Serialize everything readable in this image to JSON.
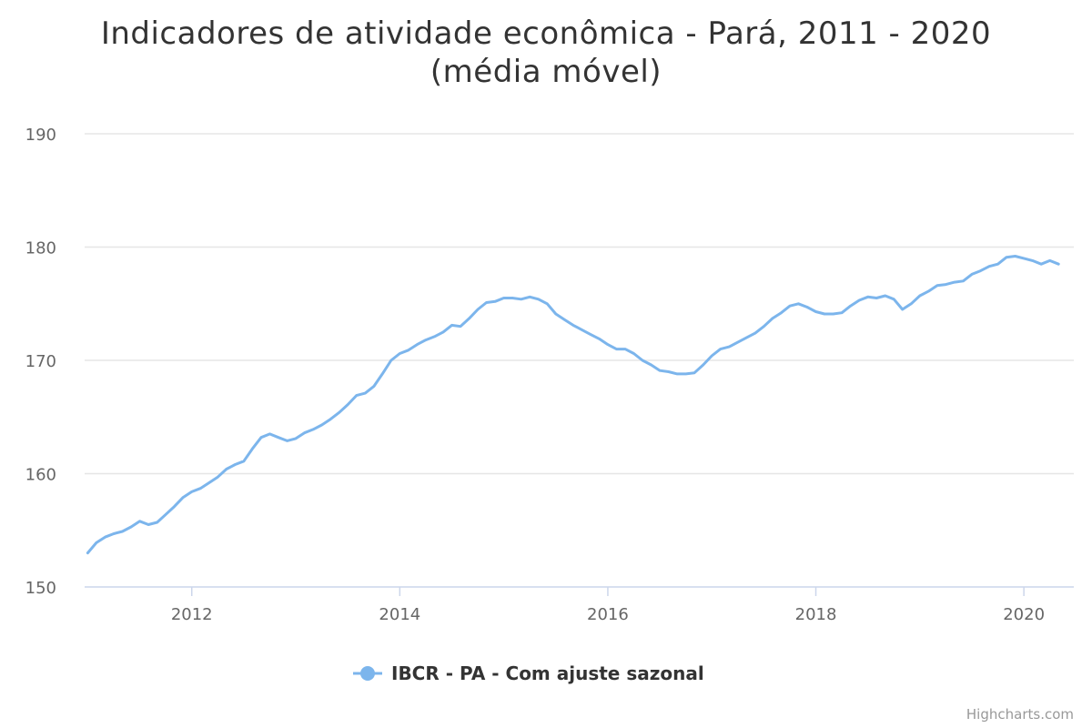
{
  "chart_data": {
    "type": "line",
    "title": "Indicadores de atividade econômica - Pará, 2011 - 2020",
    "subtitle": "(média móvel)",
    "xlabel": "",
    "ylabel": "",
    "xlim": [
      2010.97,
      2020.48
    ],
    "ylim": [
      150,
      190
    ],
    "x_ticks": [
      "2012",
      "2014",
      "2016",
      "2018",
      "2020"
    ],
    "y_ticks": [
      "150",
      "160",
      "170",
      "180",
      "190"
    ],
    "grid": "horizontal",
    "legend_position": "bottom-center",
    "series": [
      {
        "name": "IBCR - PA - Com ajuste sazonal",
        "color": "#7cb5ec",
        "x": [
          2011.0,
          2011.083,
          2011.167,
          2011.25,
          2011.333,
          2011.417,
          2011.5,
          2011.583,
          2011.667,
          2011.75,
          2011.833,
          2011.917,
          2012.0,
          2012.083,
          2012.167,
          2012.25,
          2012.333,
          2012.417,
          2012.5,
          2012.583,
          2012.667,
          2012.75,
          2012.833,
          2012.917,
          2013.0,
          2013.083,
          2013.167,
          2013.25,
          2013.333,
          2013.417,
          2013.5,
          2013.583,
          2013.667,
          2013.75,
          2013.833,
          2013.917,
          2014.0,
          2014.083,
          2014.167,
          2014.25,
          2014.333,
          2014.417,
          2014.5,
          2014.583,
          2014.667,
          2014.75,
          2014.833,
          2014.917,
          2015.0,
          2015.083,
          2015.167,
          2015.25,
          2015.333,
          2015.417,
          2015.5,
          2015.583,
          2015.667,
          2015.75,
          2015.833,
          2015.917,
          2016.0,
          2016.083,
          2016.167,
          2016.25,
          2016.333,
          2016.417,
          2016.5,
          2016.583,
          2016.667,
          2016.75,
          2016.833,
          2016.917,
          2017.0,
          2017.083,
          2017.167,
          2017.25,
          2017.333,
          2017.417,
          2017.5,
          2017.583,
          2017.667,
          2017.75,
          2017.833,
          2017.917,
          2018.0,
          2018.083,
          2018.167,
          2018.25,
          2018.333,
          2018.417,
          2018.5,
          2018.583,
          2018.667,
          2018.75,
          2018.833,
          2018.917,
          2019.0,
          2019.083,
          2019.167,
          2019.25,
          2019.333,
          2019.417,
          2019.5,
          2019.583,
          2019.667,
          2019.75,
          2019.833,
          2019.917,
          2020.0,
          2020.083,
          2020.167,
          2020.25,
          2020.333
        ],
        "values": [
          153.0,
          153.9,
          154.4,
          154.7,
          154.9,
          155.3,
          155.8,
          155.5,
          155.7,
          156.4,
          157.1,
          157.9,
          158.4,
          158.7,
          159.2,
          159.7,
          160.4,
          160.8,
          161.1,
          162.2,
          163.2,
          163.5,
          163.2,
          162.9,
          163.1,
          163.6,
          163.9,
          164.3,
          164.8,
          165.4,
          166.1,
          166.9,
          167.1,
          167.7,
          168.8,
          170.0,
          170.6,
          170.9,
          171.4,
          171.8,
          172.1,
          172.5,
          173.1,
          173.0,
          173.7,
          174.5,
          175.1,
          175.2,
          175.5,
          175.5,
          175.4,
          175.6,
          175.4,
          175.0,
          174.1,
          173.6,
          173.1,
          172.7,
          172.3,
          171.9,
          171.4,
          171.0,
          171.0,
          170.6,
          170.0,
          169.6,
          169.1,
          169.0,
          168.8,
          168.8,
          168.9,
          169.6,
          170.4,
          171.0,
          171.2,
          171.6,
          172.0,
          172.4,
          173.0,
          173.7,
          174.2,
          174.8,
          175.0,
          174.7,
          174.3,
          174.1,
          174.1,
          174.2,
          174.8,
          175.3,
          175.6,
          175.5,
          175.7,
          175.4,
          174.5,
          175.0,
          175.7,
          176.1,
          176.6,
          176.7,
          176.9,
          177.0,
          177.6,
          177.9,
          178.3,
          178.5,
          179.1,
          179.2,
          179.0,
          178.8,
          178.5,
          178.8,
          178.5
        ]
      }
    ]
  },
  "credits": "Highcharts.com"
}
